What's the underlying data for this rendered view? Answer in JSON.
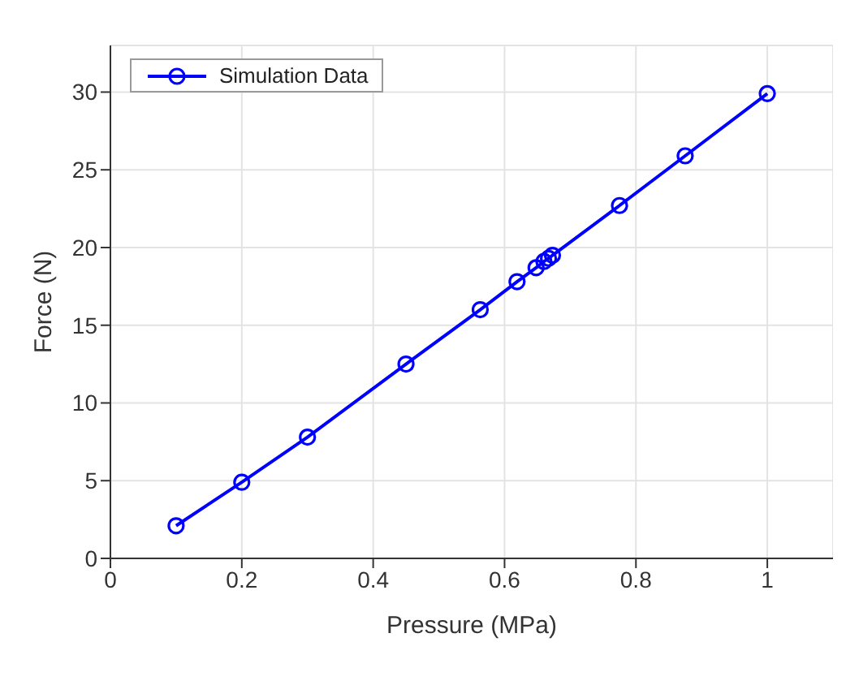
{
  "chart_data": {
    "type": "line",
    "xlabel": "Pressure (MPa)",
    "ylabel": "Force (N)",
    "x": [
      0.1,
      0.2,
      0.3,
      0.45,
      0.563,
      0.619,
      0.648,
      0.66,
      0.667,
      0.673,
      0.775,
      0.875,
      1.0
    ],
    "series": [
      {
        "name": "Simulation Data",
        "color": "#0000ff",
        "values": [
          2.1,
          4.9,
          7.8,
          12.5,
          16.0,
          17.8,
          18.7,
          19.1,
          19.3,
          19.5,
          22.7,
          25.9,
          29.9
        ]
      }
    ],
    "xlim": [
      0,
      1.1
    ],
    "xticks": [
      0,
      0.2,
      0.4,
      0.6,
      0.8,
      1
    ],
    "ylim": [
      0,
      33
    ],
    "yticks": [
      0,
      5,
      10,
      15,
      20,
      25,
      30
    ],
    "grid": true,
    "legend": "top left",
    "marker": "circle",
    "line_style": "solid"
  }
}
